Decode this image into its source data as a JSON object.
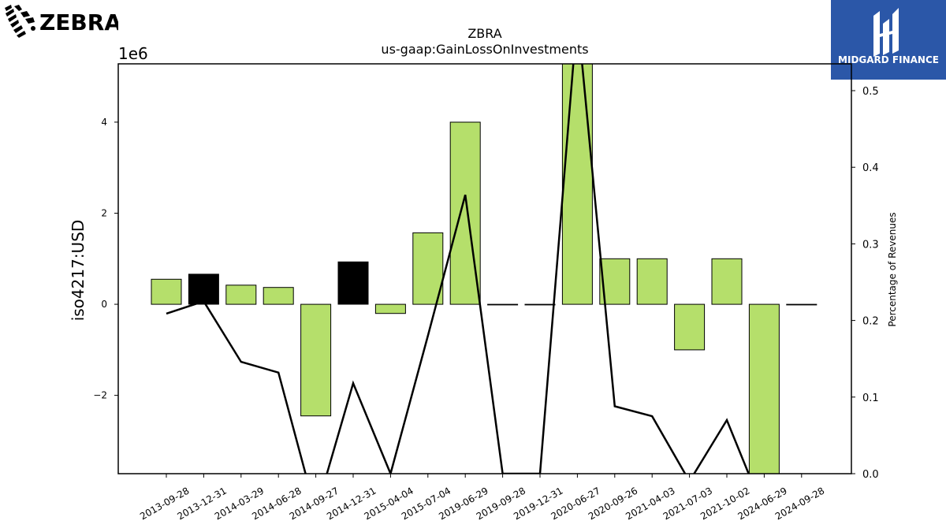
{
  "brand_left": {
    "name": "ZEBRA"
  },
  "brand_right": {
    "name": "MIDGARD FINANCE"
  },
  "colors": {
    "bar_positive": "#b5df6b",
    "bar_negative_highlight": "#000000",
    "line": "#000000"
  },
  "chart_data": {
    "type": "bar",
    "title": "ZBRA",
    "subtitle": "us-gaap:GainLossOnInvestments",
    "ylabel": "iso4217:USD",
    "ylabel_right": "Percentage of Revenues",
    "y_multiplier_label": "1e6",
    "ylim": [
      -3.72,
      5.28
    ],
    "ylim_right": [
      0.0,
      0.535
    ],
    "yticks": [
      -2,
      0,
      2,
      4
    ],
    "yticks_labels": [
      "−2",
      "0",
      "2",
      "4"
    ],
    "yticks_right": [
      0.0,
      0.1,
      0.2,
      0.3,
      0.4,
      0.5
    ],
    "yticks_right_labels": [
      "0.0",
      "0.1",
      "0.2",
      "0.3",
      "0.4",
      "0.5"
    ],
    "categories": [
      "2013-09-28",
      "2013-12-31",
      "2014-03-29",
      "2014-06-28",
      "2014-09-27",
      "2014-12-31",
      "2015-04-04",
      "2015-07-04",
      "2019-06-29",
      "2019-09-28",
      "2019-12-31",
      "2020-06-27",
      "2020-09-26",
      "2021-04-03",
      "2021-07-03",
      "2021-10-02",
      "2024-06-29",
      "2024-09-28"
    ],
    "series": [
      {
        "axis": "left",
        "values": [
          0.55,
          0.66,
          0.42,
          0.37,
          -2.45,
          0.93,
          -0.2,
          1.57,
          4.0,
          0.0,
          0.0,
          5.5,
          1.0,
          1.0,
          -1.0,
          1.0,
          -4.0,
          0.0
        ],
        "highlight": [
          false,
          true,
          false,
          false,
          false,
          true,
          false,
          false,
          false,
          false,
          false,
          false,
          false,
          false,
          false,
          false,
          false,
          false
        ]
      },
      {
        "axis": "right",
        "type": "line",
        "values": [
          0.209,
          0.225,
          0.146,
          0.132,
          -0.05,
          0.118,
          0.0,
          0.18,
          0.364,
          0.0,
          0.0,
          0.6,
          0.088,
          0.075,
          -0.01,
          0.07,
          -0.05,
          0.0
        ]
      }
    ],
    "grid": false,
    "legend": "none"
  }
}
